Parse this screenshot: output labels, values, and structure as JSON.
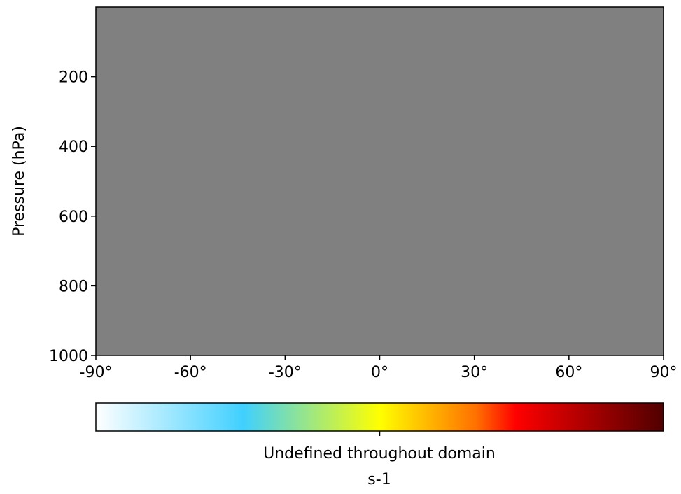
{
  "chart_data": {
    "type": "heatmap",
    "title": "",
    "xlabel": "",
    "ylabel": "Pressure (hPa)",
    "x_ticks": [
      {
        "value": -90,
        "label": "-90°"
      },
      {
        "value": -60,
        "label": "-60°"
      },
      {
        "value": -30,
        "label": "-30°"
      },
      {
        "value": 0,
        "label": "0°"
      },
      {
        "value": 30,
        "label": "30°"
      },
      {
        "value": 60,
        "label": "60°"
      },
      {
        "value": 90,
        "label": "90°"
      }
    ],
    "xlim": [
      -90,
      90
    ],
    "y_ticks": [
      {
        "value": 200,
        "label": "200"
      },
      {
        "value": 400,
        "label": "400"
      },
      {
        "value": 600,
        "label": "600"
      },
      {
        "value": 800,
        "label": "800"
      },
      {
        "value": 1000,
        "label": "1000"
      }
    ],
    "ylim": [
      1000,
      0
    ],
    "y_inverted": true,
    "field_fill_color": "#808080",
    "colorbar": {
      "orientation": "horizontal",
      "label": "Undefined throughout domain",
      "units": "s-1",
      "colors": [
        "#ffffff",
        "#40d0ff",
        "#ffff00",
        "#ff7000",
        "#ff0000",
        "#500000"
      ],
      "stops": [
        0,
        0.26,
        0.5,
        0.67,
        0.74,
        1
      ],
      "ticks": [
        0.5
      ]
    },
    "grid": false
  }
}
